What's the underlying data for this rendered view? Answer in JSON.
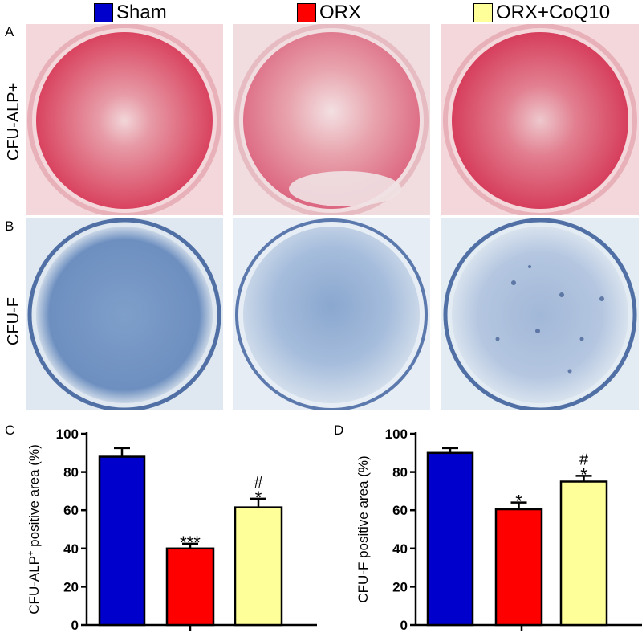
{
  "legend": [
    {
      "label": "Sham",
      "color": "#0000cc"
    },
    {
      "label": "ORX",
      "color": "#ff0000"
    },
    {
      "label": "ORX+CoQ10",
      "color": "#ffff99"
    }
  ],
  "panels": {
    "a": {
      "letter": "A",
      "row_label": "CFU-ALP+"
    },
    "b": {
      "letter": "B",
      "row_label": "CFU-F"
    },
    "c": {
      "letter": "C"
    },
    "d": {
      "letter": "D"
    }
  },
  "photos": {
    "alp_dish_color": "#d9435f",
    "alp_background": "#f4d7da",
    "f_dish_color": "#7fa2cc",
    "f_background": "#e3ebf3"
  },
  "chart_data": [
    {
      "type": "bar",
      "ylabel_main": "CFU-ALP",
      "ylabel_sup": "+",
      "ylabel_tail": " positive area (%)",
      "categories": [
        "Sham",
        "ORX",
        "ORX+CoQ10"
      ],
      "values": [
        88,
        40,
        61.5
      ],
      "errors": [
        4.5,
        2.5,
        4.5
      ],
      "colors": [
        "#0000cc",
        "#ff0000",
        "#ffff99"
      ],
      "annotations": [
        [],
        [
          "***"
        ],
        [
          "*",
          "#"
        ]
      ],
      "ylim": [
        0,
        100
      ],
      "yticks": [
        0,
        20,
        40,
        60,
        80,
        100
      ]
    },
    {
      "type": "bar",
      "ylabel_main": "CFU-F positive area (%)",
      "ylabel_sup": "",
      "ylabel_tail": "",
      "categories": [
        "Sham",
        "ORX",
        "ORX+CoQ10"
      ],
      "values": [
        90,
        60.5,
        75
      ],
      "errors": [
        2.5,
        3.5,
        3.0
      ],
      "colors": [
        "#0000cc",
        "#ff0000",
        "#ffff99"
      ],
      "annotations": [
        [],
        [
          "*"
        ],
        [
          "*",
          "#"
        ]
      ],
      "ylim": [
        0,
        100
      ],
      "yticks": [
        0,
        20,
        40,
        60,
        80,
        100
      ]
    }
  ]
}
